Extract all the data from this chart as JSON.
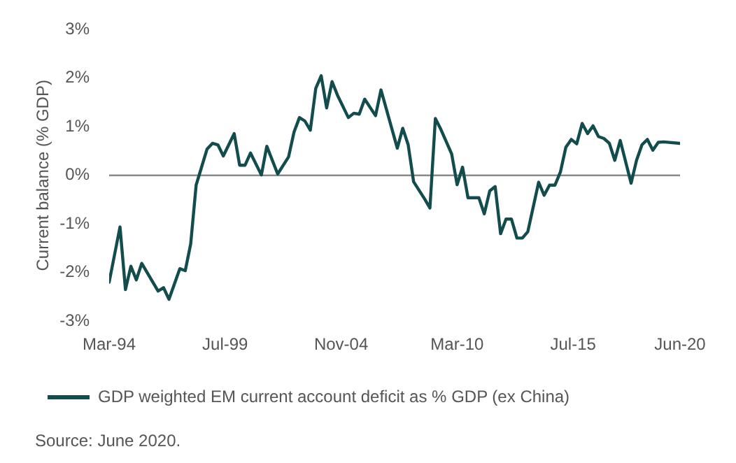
{
  "chart_data": {
    "type": "line",
    "ylabel": "Current balance (% GDP)",
    "x": [
      "1994-03",
      "1994-09",
      "1994-12",
      "1995-03",
      "1995-06",
      "1995-09",
      "1996-06",
      "1996-09",
      "1996-12",
      "1997-06",
      "1997-09",
      "1997-12",
      "1998-03",
      "1998-06",
      "1998-09",
      "1998-12",
      "1999-03",
      "1999-06",
      "1999-12",
      "2000-03",
      "2000-06",
      "2000-09",
      "2001-03",
      "2001-06",
      "2001-12",
      "2002-06",
      "2002-09",
      "2002-12",
      "2003-03",
      "2003-06",
      "2003-09",
      "2003-12",
      "2004-03",
      "2004-06",
      "2004-09",
      "2005-03",
      "2005-06",
      "2005-09",
      "2005-12",
      "2006-06",
      "2006-09",
      "2007-06",
      "2007-09",
      "2007-12",
      "2008-03",
      "2008-09",
      "2008-12",
      "2009-03",
      "2009-06",
      "2009-12",
      "2010-03",
      "2010-06",
      "2010-09",
      "2011-03",
      "2011-06",
      "2011-09",
      "2011-12",
      "2012-03",
      "2012-06",
      "2012-09",
      "2012-12",
      "2013-03",
      "2013-06",
      "2013-12",
      "2014-03",
      "2014-06",
      "2014-09",
      "2014-12",
      "2015-03",
      "2015-06",
      "2015-09",
      "2015-12",
      "2016-03",
      "2016-06",
      "2016-09",
      "2016-12",
      "2017-03",
      "2017-06",
      "2017-09",
      "2018-03",
      "2018-06",
      "2018-09",
      "2018-12",
      "2019-03",
      "2019-06",
      "2019-09",
      "2020-06"
    ],
    "series": [
      {
        "name": "GDP weighted EM current account deficit as % GDP (ex China)",
        "color": "#124c4c",
        "values": [
          -2.2,
          -1.06,
          -2.35,
          -1.87,
          -2.15,
          -1.81,
          -2.38,
          -2.31,
          -2.55,
          -1.92,
          -1.96,
          -1.41,
          -0.2,
          0.17,
          0.54,
          0.66,
          0.63,
          0.4,
          0.86,
          0.21,
          0.21,
          0.46,
          0.01,
          0.6,
          0.03,
          0.38,
          0.89,
          1.19,
          1.12,
          0.93,
          1.79,
          2.05,
          1.39,
          1.93,
          1.65,
          1.19,
          1.28,
          1.26,
          1.57,
          1.23,
          1.76,
          0.56,
          0.97,
          0.63,
          -0.13,
          -0.48,
          -0.67,
          1.17,
          0.95,
          0.44,
          -0.19,
          0.17,
          -0.46,
          -0.46,
          -0.79,
          -0.32,
          -0.23,
          -1.2,
          -0.9,
          -0.9,
          -1.29,
          -1.29,
          -1.16,
          -0.14,
          -0.41,
          -0.2,
          -0.2,
          0.07,
          0.58,
          0.74,
          0.65,
          1.07,
          0.86,
          1.02,
          0.8,
          0.76,
          0.66,
          0.31,
          0.72,
          -0.16,
          0.31,
          0.63,
          0.74,
          0.52,
          0.68,
          0.69,
          0.66
        ]
      }
    ],
    "xlim": [
      "1994-03",
      "2020-06"
    ],
    "xticks": [
      {
        "value": "1994-03",
        "label": "Mar-94"
      },
      {
        "value": "1999-07",
        "label": "Jul-99"
      },
      {
        "value": "2004-11",
        "label": "Nov-04"
      },
      {
        "value": "2010-03",
        "label": "Mar-10"
      },
      {
        "value": "2015-07",
        "label": "Jul-15"
      },
      {
        "value": "2020-06",
        "label": "Jun-20"
      }
    ],
    "ylim": [
      -3,
      3
    ],
    "yticks": [
      {
        "value": -3,
        "label": "-3%"
      },
      {
        "value": -2,
        "label": "-2%"
      },
      {
        "value": -1,
        "label": "-1%"
      },
      {
        "value": 0,
        "label": "0%"
      },
      {
        "value": 1,
        "label": "1%"
      },
      {
        "value": 2,
        "label": "2%"
      },
      {
        "value": 3,
        "label": "3%"
      }
    ],
    "ref_lines": [
      {
        "axis": "y",
        "value": 0,
        "color": "#8a8a8a"
      }
    ],
    "grid": false,
    "legend": "bottom",
    "marker": "none",
    "line_style": "solid",
    "annotations": [
      "Source: June 2020."
    ]
  }
}
